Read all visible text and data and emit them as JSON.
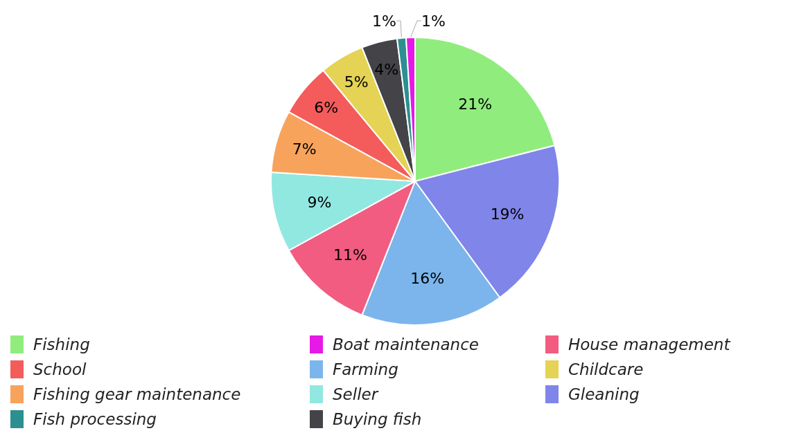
{
  "chart_data": {
    "type": "pie",
    "categories": [
      "Fishing",
      "Gleaning",
      "Farming",
      "House management",
      "Seller",
      "Fishing gear maintenance",
      "School",
      "Childcare",
      "Buying fish",
      "Fish processing",
      "Boat maintenance"
    ],
    "values": [
      21,
      19,
      16,
      11,
      9,
      7,
      6,
      5,
      4,
      1,
      1
    ],
    "colors": [
      "#90ed7d",
      "#8085e9",
      "#7cb5ec",
      "#f15c80",
      "#91e8e1",
      "#f7a35c",
      "#f45b5b",
      "#e4d354",
      "#434348",
      "#2b908f",
      "#e619e6"
    ],
    "legend": "bottom",
    "value_labels": [
      "21%",
      "19%",
      "16%",
      "11%",
      "9%",
      "7%",
      "6%",
      "5%",
      "4%",
      "1%",
      "1%"
    ]
  }
}
